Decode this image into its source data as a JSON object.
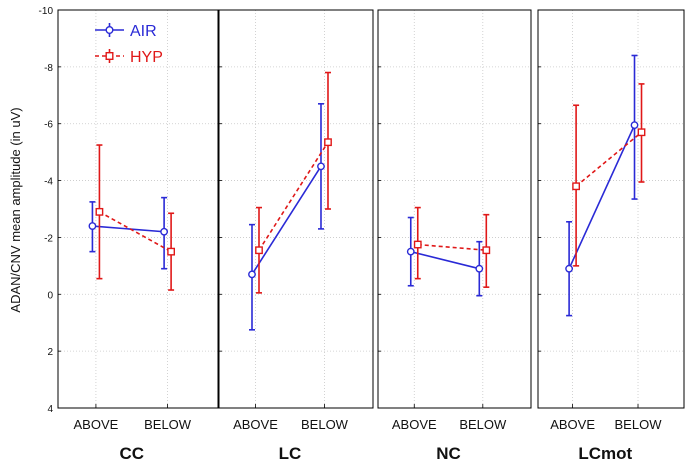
{
  "chart_data": {
    "type": "line",
    "ylabel": "ADAN/CNV mean amplitude (in uV)",
    "ylim": [
      -10,
      4
    ],
    "y_reversed": true,
    "y_ticks": [
      -10,
      -8,
      -6,
      -4,
      -2,
      0,
      2,
      4
    ],
    "y_tick_labels": [
      "-10",
      "-8",
      "-6",
      "-4",
      "-2",
      "0",
      "2",
      "4"
    ],
    "categories": [
      "ABOVE",
      "BELOW"
    ],
    "legend": {
      "position": "top-left",
      "entries": [
        "AIR",
        "HYP"
      ]
    },
    "colors": {
      "AIR": "#2a2ad6",
      "HYP": "#e01818"
    },
    "panels": [
      {
        "title": "CC",
        "series": [
          {
            "name": "AIR",
            "values": [
              -2.4,
              -2.2
            ],
            "err_low": [
              -1.5,
              -0.9
            ],
            "err_high": [
              -3.25,
              -3.4
            ]
          },
          {
            "name": "HYP",
            "values": [
              -2.9,
              -1.5
            ],
            "err_low": [
              -0.55,
              -0.15
            ],
            "err_high": [
              -5.25,
              -2.85
            ]
          }
        ]
      },
      {
        "title": "LC",
        "series": [
          {
            "name": "AIR",
            "values": [
              -0.7,
              -4.5
            ],
            "err_low": [
              1.25,
              -2.3
            ],
            "err_high": [
              -2.45,
              -6.7
            ]
          },
          {
            "name": "HYP",
            "values": [
              -1.55,
              -5.35
            ],
            "err_low": [
              -0.05,
              -3.0
            ],
            "err_high": [
              -3.05,
              -7.8
            ]
          }
        ]
      },
      {
        "title": "NC",
        "series": [
          {
            "name": "AIR",
            "values": [
              -1.5,
              -0.9
            ],
            "err_low": [
              -0.3,
              0.05
            ],
            "err_high": [
              -2.7,
              -1.85
            ]
          },
          {
            "name": "HYP",
            "values": [
              -1.75,
              -1.55
            ],
            "err_low": [
              -0.55,
              -0.25
            ],
            "err_high": [
              -3.05,
              -2.8
            ]
          }
        ]
      },
      {
        "title": "LCmot",
        "series": [
          {
            "name": "AIR",
            "values": [
              -0.9,
              -5.95
            ],
            "err_low": [
              0.75,
              -3.35
            ],
            "err_high": [
              -2.55,
              -8.4
            ]
          },
          {
            "name": "HYP",
            "values": [
              -3.8,
              -5.7
            ],
            "err_low": [
              -1.0,
              -3.95
            ],
            "err_high": [
              -6.65,
              -7.4
            ]
          }
        ]
      }
    ]
  }
}
